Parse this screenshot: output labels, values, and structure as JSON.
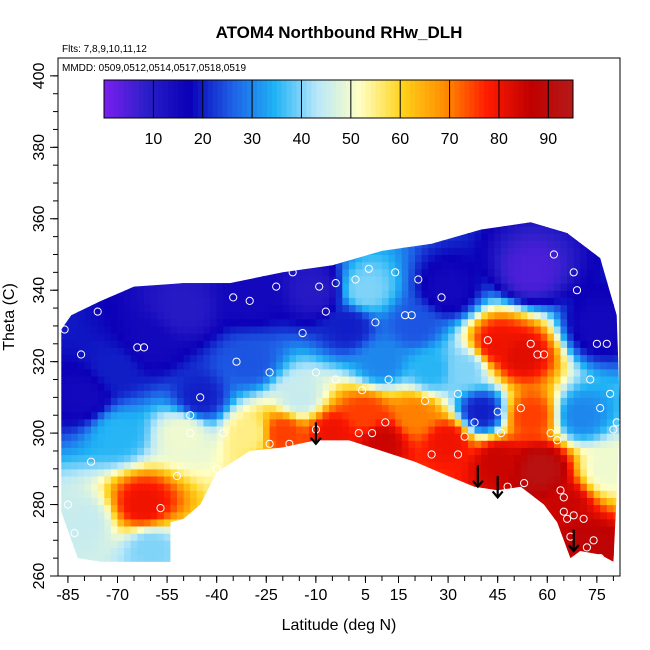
{
  "chart_data": {
    "type": "heatmap",
    "title": "ATOM4 Northbound RHw_DLH",
    "annotations": {
      "flights": "Flts: 7,8,9,10,11,12",
      "dates": "MMDD: 0509,0512,0514,0517,0518,0519"
    },
    "xlabel": "Latitude (deg N)",
    "ylabel": "Theta (C)",
    "xlim": [
      -88,
      82
    ],
    "ylim": [
      260,
      405
    ],
    "x_ticks": [
      -85,
      -70,
      -55,
      -40,
      -25,
      -10,
      5,
      15,
      30,
      45,
      60,
      75
    ],
    "y_ticks": [
      260,
      280,
      300,
      320,
      340,
      360,
      380,
      400
    ],
    "grid": false,
    "colorbar": {
      "range": [
        0,
        95
      ],
      "ticks": [
        10,
        20,
        30,
        40,
        50,
        60,
        70,
        80,
        90
      ],
      "colors": [
        "#7a1fef",
        "#2b1fc8",
        "#0b00b8",
        "#1e5fe6",
        "#1fb2f5",
        "#b8e7fa",
        "#ffffc4",
        "#ffd21a",
        "#ff8c00",
        "#ff1a00",
        "#c00000",
        "#b51a1a"
      ]
    },
    "coverage_boundary": [
      [
        -87,
        278
      ],
      [
        -87,
        329
      ],
      [
        -84,
        333
      ],
      [
        -75,
        337
      ],
      [
        -65,
        341
      ],
      [
        -50,
        342
      ],
      [
        -36,
        342
      ],
      [
        -20,
        345
      ],
      [
        -5,
        347
      ],
      [
        10,
        351
      ],
      [
        25,
        353
      ],
      [
        40,
        357
      ],
      [
        55,
        359
      ],
      [
        66,
        356
      ],
      [
        76,
        349
      ],
      [
        81,
        333
      ],
      [
        82,
        305
      ],
      [
        81,
        283
      ],
      [
        80,
        264
      ],
      [
        76,
        266
      ],
      [
        70,
        267
      ],
      [
        67,
        265
      ],
      [
        63,
        275
      ],
      [
        59,
        280
      ],
      [
        52,
        285
      ],
      [
        45,
        284
      ],
      [
        38,
        285
      ],
      [
        30,
        288
      ],
      [
        20,
        292
      ],
      [
        10,
        295
      ],
      [
        0,
        298
      ],
      [
        -10,
        298
      ],
      [
        -20,
        296
      ],
      [
        -30,
        295
      ],
      [
        -40,
        289
      ],
      [
        -45,
        280
      ],
      [
        -50,
        276
      ],
      [
        -54,
        275
      ],
      [
        -54,
        264
      ],
      [
        -65,
        264
      ],
      [
        -75,
        264
      ],
      [
        -82,
        265
      ]
    ],
    "rh_field": [
      {
        "x": -80,
        "y": 310,
        "v": 15
      },
      {
        "x": -70,
        "y": 300,
        "v": 35
      },
      {
        "x": -62,
        "y": 280,
        "v": 80
      },
      {
        "x": -80,
        "y": 275,
        "v": 45
      },
      {
        "x": -60,
        "y": 268,
        "v": 40
      },
      {
        "x": -50,
        "y": 300,
        "v": 50
      },
      {
        "x": -45,
        "y": 310,
        "v": 20
      },
      {
        "x": -60,
        "y": 325,
        "v": 15
      },
      {
        "x": -50,
        "y": 335,
        "v": 10
      },
      {
        "x": -30,
        "y": 320,
        "v": 25
      },
      {
        "x": -30,
        "y": 300,
        "v": 55
      },
      {
        "x": -15,
        "y": 310,
        "v": 45
      },
      {
        "x": -5,
        "y": 300,
        "v": 80
      },
      {
        "x": -20,
        "y": 300,
        "v": 75
      },
      {
        "x": 5,
        "y": 305,
        "v": 75
      },
      {
        "x": 10,
        "y": 298,
        "v": 85
      },
      {
        "x": 20,
        "y": 305,
        "v": 70
      },
      {
        "x": 30,
        "y": 298,
        "v": 80
      },
      {
        "x": 45,
        "y": 292,
        "v": 85
      },
      {
        "x": 58,
        "y": 290,
        "v": 92
      },
      {
        "x": 65,
        "y": 280,
        "v": 85
      },
      {
        "x": 72,
        "y": 268,
        "v": 88
      },
      {
        "x": 55,
        "y": 305,
        "v": 75
      },
      {
        "x": 45,
        "y": 325,
        "v": 80
      },
      {
        "x": 52,
        "y": 322,
        "v": 82
      },
      {
        "x": 35,
        "y": 318,
        "v": 40
      },
      {
        "x": 25,
        "y": 318,
        "v": 35
      },
      {
        "x": 20,
        "y": 330,
        "v": 25
      },
      {
        "x": 5,
        "y": 340,
        "v": 40
      },
      {
        "x": 0,
        "y": 330,
        "v": 20
      },
      {
        "x": -10,
        "y": 340,
        "v": 10
      },
      {
        "x": 30,
        "y": 340,
        "v": 15
      },
      {
        "x": 55,
        "y": 345,
        "v": 5
      },
      {
        "x": 75,
        "y": 330,
        "v": 15
      },
      {
        "x": 70,
        "y": 305,
        "v": 30
      },
      {
        "x": 78,
        "y": 290,
        "v": 50
      },
      {
        "x": 40,
        "y": 306,
        "v": 20
      },
      {
        "x": -70,
        "y": 318,
        "v": 20
      },
      {
        "x": -30,
        "y": 338,
        "v": 15
      },
      {
        "x": 10,
        "y": 320,
        "v": 30
      }
    ],
    "observations": [
      [
        -86,
        329
      ],
      [
        -81,
        322
      ],
      [
        -83,
        272
      ],
      [
        -78,
        292
      ],
      [
        -85,
        280
      ],
      [
        -57,
        279
      ],
      [
        -52,
        288
      ],
      [
        -48,
        305
      ],
      [
        -48,
        300
      ],
      [
        -45,
        310
      ],
      [
        -40,
        290
      ],
      [
        -38,
        300
      ],
      [
        -35,
        338
      ],
      [
        -30,
        337
      ],
      [
        -34,
        320
      ],
      [
        -22,
        341
      ],
      [
        -17,
        345
      ],
      [
        -24,
        317
      ],
      [
        -14,
        328
      ],
      [
        -10,
        317
      ],
      [
        -24,
        297
      ],
      [
        -18,
        297
      ],
      [
        -10,
        301
      ],
      [
        -9,
        341
      ],
      [
        -4,
        342
      ],
      [
        -7,
        334
      ],
      [
        -4,
        315
      ],
      [
        2,
        343
      ],
      [
        6,
        346
      ],
      [
        8,
        331
      ],
      [
        4,
        312
      ],
      [
        3,
        300
      ],
      [
        7,
        300
      ],
      [
        11,
        303
      ],
      [
        12,
        315
      ],
      [
        14,
        345
      ],
      [
        17,
        333
      ],
      [
        19,
        333
      ],
      [
        21,
        343
      ],
      [
        23,
        309
      ],
      [
        25,
        294
      ],
      [
        28,
        338
      ],
      [
        33,
        311
      ],
      [
        33,
        294
      ],
      [
        35,
        299
      ],
      [
        38,
        303
      ],
      [
        42,
        326
      ],
      [
        45,
        306
      ],
      [
        46,
        300
      ],
      [
        48,
        285
      ],
      [
        52,
        307
      ],
      [
        53,
        286
      ],
      [
        55,
        325
      ],
      [
        57,
        322
      ],
      [
        59,
        322
      ],
      [
        61,
        300
      ],
      [
        63,
        298
      ],
      [
        64,
        284
      ],
      [
        65,
        282
      ],
      [
        65,
        278
      ],
      [
        66,
        276
      ],
      [
        67,
        271
      ],
      [
        68,
        277
      ],
      [
        69,
        340
      ],
      [
        71,
        276
      ],
      [
        72,
        268
      ],
      [
        74,
        270
      ],
      [
        76,
        265
      ],
      [
        75,
        325
      ],
      [
        76,
        307
      ],
      [
        78,
        325
      ],
      [
        79,
        311
      ],
      [
        80,
        301
      ],
      [
        81,
        303
      ],
      [
        62,
        350
      ],
      [
        68,
        345
      ],
      [
        73,
        315
      ],
      [
        -83,
        344
      ],
      [
        -76,
        334
      ],
      [
        -62,
        324
      ],
      [
        -64,
        324
      ]
    ],
    "arrows": [
      {
        "x": -10,
        "y_from": 303,
        "y_to": 297
      },
      {
        "x": 39,
        "y_from": 291,
        "y_to": 285
      },
      {
        "x": 45,
        "y_from": 288,
        "y_to": 282
      },
      {
        "x": 68,
        "y_from": 273,
        "y_to": 267
      }
    ]
  }
}
